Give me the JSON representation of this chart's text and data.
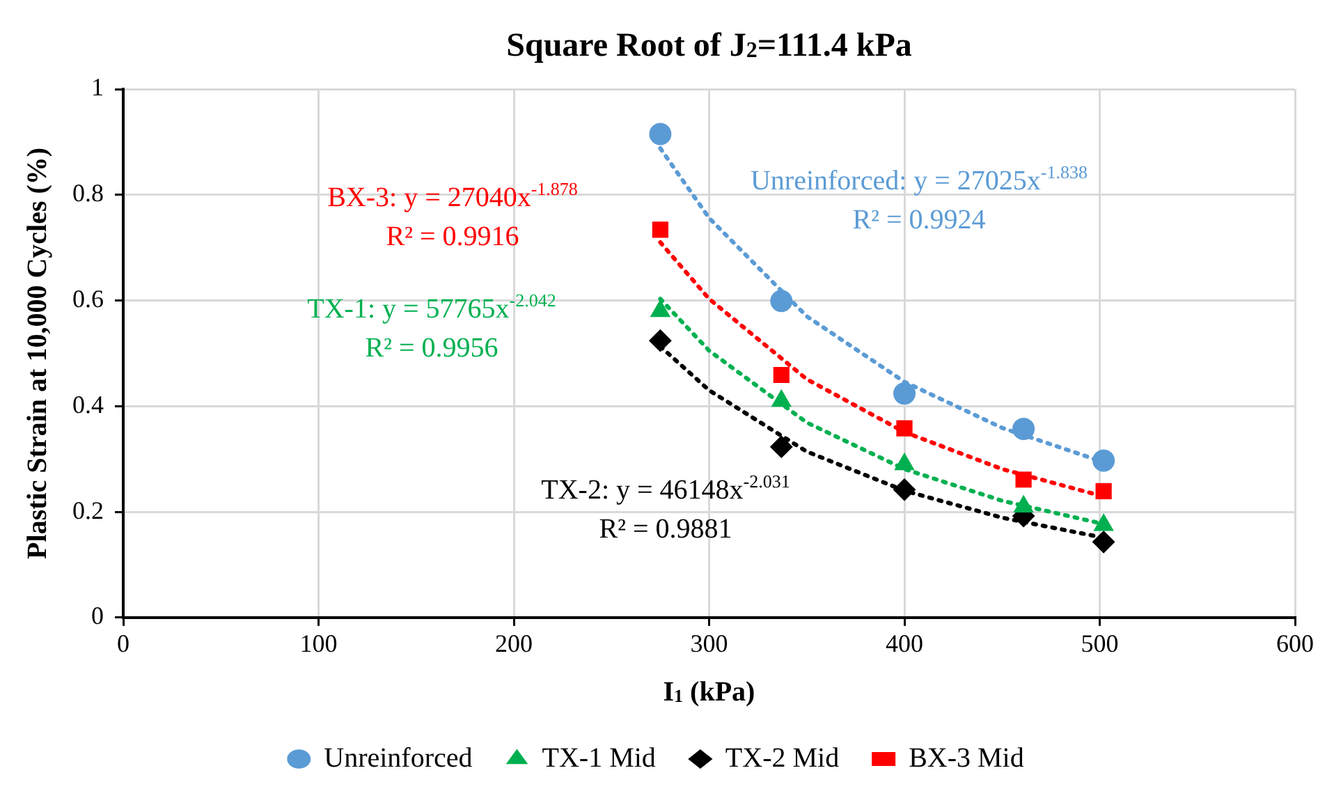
{
  "chart_data": {
    "type": "scatter",
    "title": "Square Root of J$_{2}$=111.4 kPa",
    "xlabel": "I$_{1}$ (kPa)",
    "ylabel": "Plastic Strain at 10,000 Cycles (%)",
    "x": [
      275,
      337,
      400,
      461,
      502
    ],
    "series": [
      {
        "name": "Unreinforced",
        "color": "#5b9bd5",
        "marker": "circle",
        "values": [
          0.915,
          0.599,
          0.424,
          0.357,
          0.297
        ]
      },
      {
        "name": "TX-1 Mid",
        "color": "#00b050",
        "marker": "triangle",
        "values": [
          0.58,
          0.41,
          0.29,
          0.21,
          0.175
        ]
      },
      {
        "name": "TX-2 Mid",
        "color": "#000000",
        "marker": "diamond",
        "values": [
          0.524,
          0.323,
          0.242,
          0.192,
          0.143
        ]
      },
      {
        "name": "BX-3 Mid",
        "color": "#ff0000",
        "marker": "square",
        "values": [
          0.734,
          0.459,
          0.358,
          0.261,
          0.239
        ]
      },
      {
        "type": "line",
        "color": "#5b9bd5",
        "marker": "none",
        "line_style": "dotted",
        "x": [
          275,
          300,
          350,
          400,
          450,
          502
        ],
        "values": [
          0.888,
          0.756,
          0.57,
          0.446,
          0.359,
          0.294
        ]
      },
      {
        "type": "line",
        "color": "#00b050",
        "marker": "none",
        "line_style": "dotted",
        "x": [
          275,
          300,
          350,
          400,
          450,
          502
        ],
        "values": [
          0.603,
          0.505,
          0.369,
          0.281,
          0.221,
          0.177
        ]
      },
      {
        "type": "line",
        "color": "#000000",
        "marker": "none",
        "line_style": "dotted",
        "x": [
          275,
          300,
          350,
          400,
          450,
          502
        ],
        "values": [
          0.513,
          0.43,
          0.314,
          0.24,
          0.189,
          0.151
        ]
      },
      {
        "type": "line",
        "color": "#ff0000",
        "marker": "none",
        "line_style": "dotted",
        "x": [
          275,
          300,
          350,
          400,
          450,
          502
        ],
        "values": [
          0.71,
          0.603,
          0.451,
          0.351,
          0.281,
          0.229
        ]
      }
    ],
    "annotations": [
      "Unreinforced: y = 27025x$^{-1.838}$\nR² = 0.9924",
      "TX-1: y = 57765x$^{-2.042}$\nR² = 0.9956",
      "TX-2: y = 46148x$^{-2.031}$\nR² = 0.9881",
      "BX-3: y = 27040x$^{-1.878}$\nR² = 0.9916"
    ],
    "xlim": [
      0,
      600
    ],
    "xticks": [
      0,
      100,
      200,
      300,
      400,
      500,
      600
    ],
    "ylim": [
      0,
      1
    ],
    "yticks": [
      0,
      0.2,
      0.4,
      0.6,
      0.8,
      1
    ],
    "grid": true,
    "legend": "bottom"
  }
}
